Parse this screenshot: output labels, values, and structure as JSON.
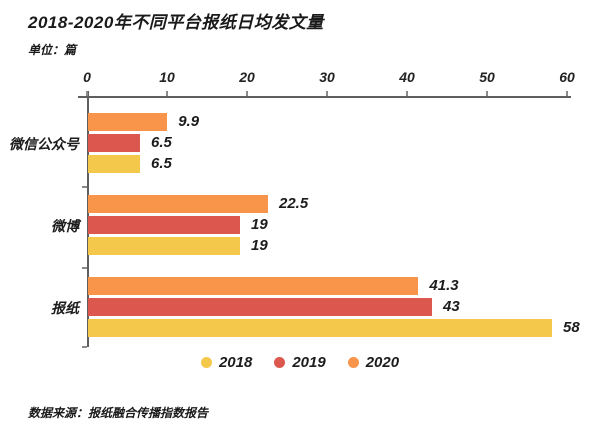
{
  "header": {
    "title": "2018-2020年不同平台报纸日均发文量",
    "unit_label": "单位：篇"
  },
  "footer": {
    "source": "数据来源：报纸融合传播指数报告"
  },
  "chart_data": {
    "type": "bar",
    "orientation": "horizontal",
    "title": "2018-2020年不同平台报纸日均发文量",
    "unit": "篇",
    "categories": [
      "微信公众号",
      "微博",
      "报纸"
    ],
    "series": [
      {
        "name": "2018",
        "color": "#F4C84A",
        "values": [
          6.5,
          19,
          58
        ]
      },
      {
        "name": "2019",
        "color": "#DC574E",
        "values": [
          6.5,
          19,
          43
        ]
      },
      {
        "name": "2020",
        "color": "#F8954A",
        "values": [
          9.9,
          22.5,
          41.3
        ]
      }
    ],
    "bar_order_top_to_bottom": [
      "2020",
      "2019",
      "2018"
    ],
    "x_ticks": [
      0,
      10,
      20,
      30,
      40,
      50,
      60
    ],
    "xlim": [
      0,
      60
    ],
    "grid": false,
    "legend_entries": [
      "2018",
      "2019",
      "2020"
    ],
    "legend_position": "bottom",
    "value_labels_shown": true,
    "source": "数据来源：报纸融合传播指数报告",
    "axis_color": "#5F5F5F",
    "tick_color": "#8A8A8A",
    "text_color": "#1C1C1C"
  }
}
